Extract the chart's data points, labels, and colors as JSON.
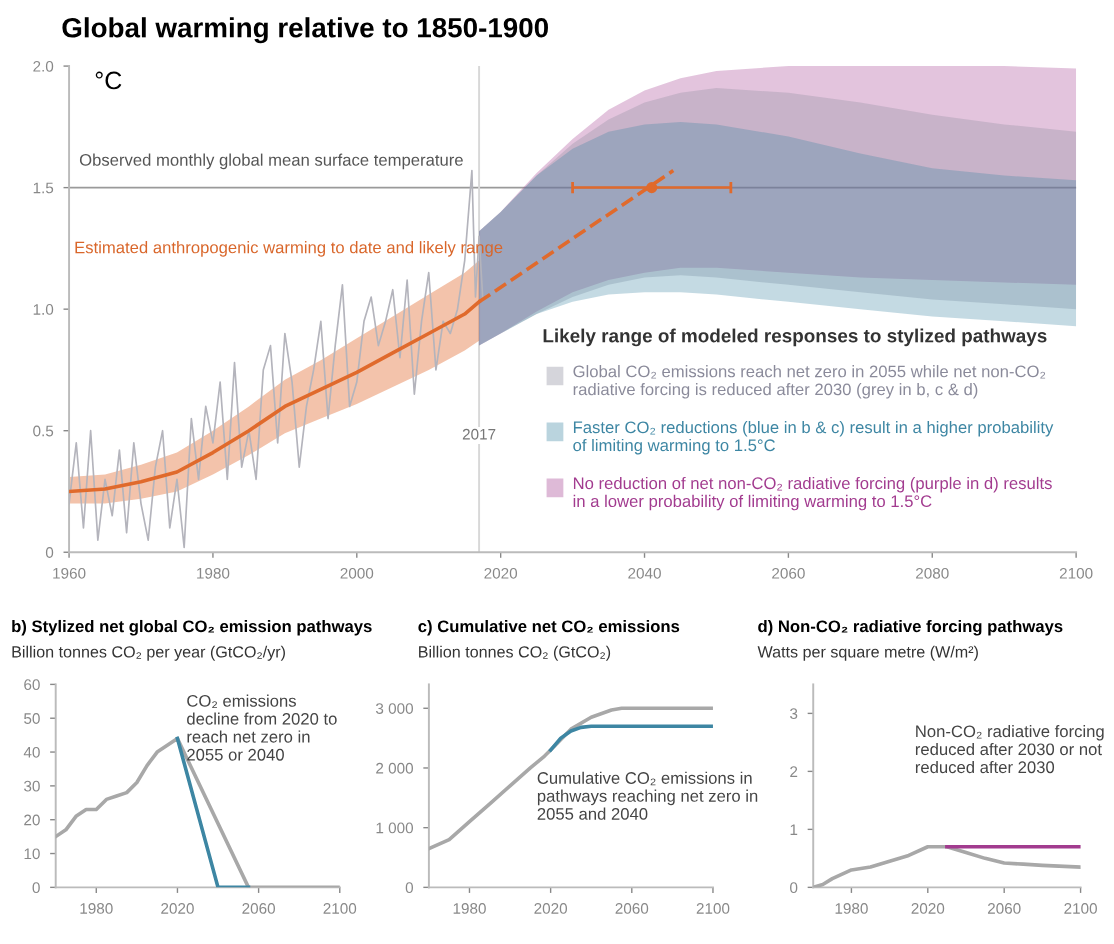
{
  "chart_data": [
    {
      "type": "line",
      "title": "Global warming relative to 1850-1900",
      "ylabel": "°C",
      "xlim": [
        1960,
        2100
      ],
      "ylim": [
        0,
        2.0
      ],
      "xticks": [
        1960,
        1980,
        2000,
        2020,
        2040,
        2060,
        2080,
        2100
      ],
      "yticks": [
        0,
        0.5,
        {
          "value": 1.0,
          "label": "1.0"
        },
        1.5,
        {
          "value": 2.0,
          "label": "2.0"
        }
      ],
      "grid": false,
      "legend": "bottom right",
      "marker": "none",
      "line_style": "solid",
      "legend_title": "Likely range of modeled responses to stylized pathways",
      "annotations": [
        "Observed monthly global mean surface temperature",
        "Estimated anthropogenic warming to date and likely range"
      ],
      "ref_lines": [
        {
          "axis": "y",
          "value": 1.5,
          "color": "#9a9a9a"
        },
        {
          "axis": "x",
          "value": 2017,
          "label": "2017",
          "color": "#d8d8d8"
        }
      ],
      "series": [
        {
          "name": "No reduction of net non-CO₂ radiative forcing (purple in d) results in a lower probability of limiting warming to 1.5°C",
          "color": "#a23b8f",
          "x": [
            2017,
            2020,
            2025,
            2030,
            2035,
            2040,
            2045,
            2050,
            2060,
            2070,
            2080,
            2090,
            2100
          ],
          "values": [
            null,
            null,
            null,
            null,
            null,
            null,
            null,
            null,
            null,
            null,
            null,
            null,
            null
          ],
          "lower": [
            0.85,
            0.9,
            0.99,
            1.07,
            1.12,
            1.15,
            1.17,
            1.17,
            1.15,
            1.13,
            1.12,
            1.11,
            1.1
          ],
          "upper": [
            1.32,
            1.4,
            1.56,
            1.7,
            1.82,
            1.9,
            1.95,
            1.98,
            2.0,
            2.0,
            2.0,
            2.0,
            1.99
          ]
        },
        {
          "name": "Global CO₂ emissions reach net zero in 2055 while net non-CO₂ radiative forcing is reduced after 2030 (grey in b, c & d)",
          "color": "#8a8a9a",
          "x": [
            2017,
            2020,
            2025,
            2030,
            2035,
            2040,
            2045,
            2050,
            2060,
            2070,
            2080,
            2090,
            2100
          ],
          "values": [
            null,
            null,
            null,
            null,
            null,
            null,
            null,
            null,
            null,
            null,
            null,
            null,
            null
          ],
          "lower": [
            0.85,
            0.9,
            0.98,
            1.05,
            1.1,
            1.13,
            1.14,
            1.13,
            1.1,
            1.07,
            1.04,
            1.02,
            1.0
          ],
          "upper": [
            1.32,
            1.4,
            1.55,
            1.68,
            1.78,
            1.85,
            1.89,
            1.91,
            1.89,
            1.85,
            1.8,
            1.76,
            1.73
          ]
        },
        {
          "name": "Faster CO₂ reductions (blue in b & c) result in a higher probability of limiting warming to 1.5°C",
          "color": "#3d86a3",
          "x": [
            2017,
            2020,
            2025,
            2030,
            2035,
            2040,
            2045,
            2050,
            2060,
            2070,
            2080,
            2090,
            2100
          ],
          "values": [
            null,
            null,
            null,
            null,
            null,
            null,
            null,
            null,
            null,
            null,
            null,
            null,
            null
          ],
          "lower": [
            0.85,
            0.9,
            0.98,
            1.03,
            1.06,
            1.07,
            1.07,
            1.06,
            1.03,
            1.0,
            0.97,
            0.95,
            0.93
          ],
          "upper": [
            1.32,
            1.4,
            1.55,
            1.66,
            1.73,
            1.76,
            1.77,
            1.76,
            1.71,
            1.64,
            1.58,
            1.55,
            1.53
          ]
        },
        {
          "color": "#b4b4bc",
          "x": [
            1960,
            1961,
            1962,
            1963,
            1964,
            1965,
            1966,
            1967,
            1968,
            1969,
            1970,
            1971,
            1972,
            1973,
            1974,
            1975,
            1976,
            1977,
            1978,
            1979,
            1980,
            1981,
            1982,
            1983,
            1984,
            1985,
            1986,
            1987,
            1988,
            1989,
            1990,
            1991,
            1992,
            1993,
            1994,
            1995,
            1996,
            1997,
            1998,
            1999,
            2000,
            2001,
            2002,
            2003,
            2004,
            2005,
            2006,
            2007,
            2008,
            2009,
            2010,
            2011,
            2012,
            2013,
            2014,
            2015,
            2016,
            2016.5,
            2017,
            2017.5
          ],
          "values": [
            0.2,
            0.45,
            0.1,
            0.5,
            0.05,
            0.3,
            0.15,
            0.42,
            0.08,
            0.45,
            0.2,
            0.05,
            0.35,
            0.5,
            0.1,
            0.3,
            0.02,
            0.55,
            0.3,
            0.6,
            0.45,
            0.7,
            0.3,
            0.78,
            0.35,
            0.5,
            0.3,
            0.75,
            0.85,
            0.45,
            0.9,
            0.7,
            0.35,
            0.6,
            0.75,
            0.95,
            0.55,
            0.85,
            1.1,
            0.6,
            0.7,
            0.95,
            1.05,
            0.85,
            0.95,
            1.08,
            0.8,
            1.12,
            0.65,
            0.95,
            1.15,
            0.75,
            0.95,
            0.9,
            1.0,
            1.2,
            1.57,
            1.05,
            1.3,
            1.05
          ]
        },
        {
          "color": "#e06a2c",
          "x": [
            1960,
            1965,
            1970,
            1975,
            1980,
            1985,
            1990,
            1995,
            2000,
            2005,
            2010,
            2015,
            2017
          ],
          "values": [
            0.25,
            0.26,
            0.29,
            0.33,
            0.41,
            0.5,
            0.6,
            0.67,
            0.74,
            0.82,
            0.9,
            0.98,
            1.03
          ],
          "lower": [
            0.2,
            0.2,
            0.22,
            0.25,
            0.32,
            0.4,
            0.49,
            0.55,
            0.61,
            0.68,
            0.75,
            0.83,
            0.87
          ],
          "upper": [
            0.31,
            0.32,
            0.36,
            0.41,
            0.5,
            0.6,
            0.71,
            0.79,
            0.88,
            0.97,
            1.06,
            1.15,
            1.2
          ]
        },
        {
          "color": "#e06a2c",
          "line_style": "dashed",
          "x": [
            2017,
            2044
          ],
          "values": [
            1.03,
            1.57
          ]
        },
        {
          "type": "scatter",
          "color": "#e06a2c",
          "marker": "circle",
          "x": [
            2041
          ],
          "values": [
            1.5
          ],
          "xerrors": [
            [
              2030,
              2052
            ]
          ]
        }
      ]
    },
    {
      "type": "line",
      "title": "b) Stylized net global CO₂ emission pathways",
      "subtitle": "Billion tonnes CO₂ per year (GtCO₂/yr)",
      "xlim": [
        1960,
        2100
      ],
      "ylim": [
        0,
        60
      ],
      "xticks": [
        1980,
        2020,
        2060,
        2100
      ],
      "yticks": [
        0,
        10,
        20,
        30,
        40,
        50,
        60
      ],
      "grid": false,
      "marker": "none",
      "line_style": "solid",
      "annotations": [
        "CO₂ emissions decline from 2020 to reach net zero in 2055 or 2040"
      ],
      "series": [
        {
          "color": "#a8a8a8",
          "x": [
            1960,
            1965,
            1970,
            1975,
            1980,
            1985,
            1990,
            1995,
            2000,
            2005,
            2010,
            2015,
            2020,
            2055,
            2100
          ],
          "values": [
            15,
            17,
            21,
            23,
            23,
            26,
            27,
            28,
            31,
            36,
            40,
            42,
            44,
            0,
            0
          ]
        },
        {
          "color": "#3d86a3",
          "x": [
            2020,
            2040,
            2055
          ],
          "values": [
            44,
            0,
            0
          ]
        }
      ]
    },
    {
      "type": "line",
      "title": "c) Cumulative net CO₂ emissions",
      "subtitle": "Billion tonnes CO₂ (GtCO₂)",
      "xlim": [
        1960,
        2100
      ],
      "ylim": [
        0,
        3400
      ],
      "xticks": [
        1980,
        2020,
        2060,
        2100
      ],
      "yticks": [
        0,
        {
          "value": 1000,
          "label": "1 000"
        },
        {
          "value": 2000,
          "label": "2 000"
        },
        {
          "value": 3000,
          "label": "3 000"
        }
      ],
      "grid": false,
      "marker": "none",
      "line_style": "solid",
      "annotations": [
        "Cumulative CO₂ emissions in pathways reaching net zero in 2055 and 2040"
      ],
      "series": [
        {
          "color": "#a8a8a8",
          "x": [
            1960,
            1970,
            1980,
            1990,
            2000,
            2010,
            2017,
            2020,
            2030,
            2040,
            2050,
            2055,
            2100
          ],
          "values": [
            650,
            800,
            1100,
            1400,
            1700,
            2000,
            2200,
            2300,
            2650,
            2850,
            2970,
            3000,
            3000
          ]
        },
        {
          "color": "#3d86a3",
          "x": [
            2020,
            2025,
            2030,
            2035,
            2040,
            2100
          ],
          "values": [
            2300,
            2500,
            2620,
            2680,
            2700,
            2700
          ]
        }
      ]
    },
    {
      "type": "line",
      "title": "d) Non-CO₂ radiative forcing pathways",
      "subtitle": "Watts per square metre (W/m²)",
      "xlim": [
        1960,
        2100
      ],
      "ylim": [
        0,
        3.5
      ],
      "xticks": [
        1980,
        2020,
        2060,
        2100
      ],
      "yticks": [
        0,
        1,
        2,
        3
      ],
      "grid": false,
      "marker": "none",
      "line_style": "solid",
      "annotations": [
        "Non-CO₂ radiative forcing reduced after 2030 or not reduced after 2030"
      ],
      "series": [
        {
          "color": "#a8a8a8",
          "x": [
            1960,
            1965,
            1970,
            1980,
            1990,
            2000,
            2010,
            2020,
            2030,
            2040,
            2050,
            2060,
            2070,
            2080,
            2100
          ],
          "values": [
            0,
            0.05,
            0.15,
            0.3,
            0.35,
            0.45,
            0.55,
            0.7,
            0.7,
            0.6,
            0.5,
            0.42,
            0.4,
            0.38,
            0.35
          ]
        },
        {
          "color": "#a23b8f",
          "x": [
            2030,
            2100
          ],
          "values": [
            0.7,
            0.7
          ]
        }
      ]
    }
  ]
}
